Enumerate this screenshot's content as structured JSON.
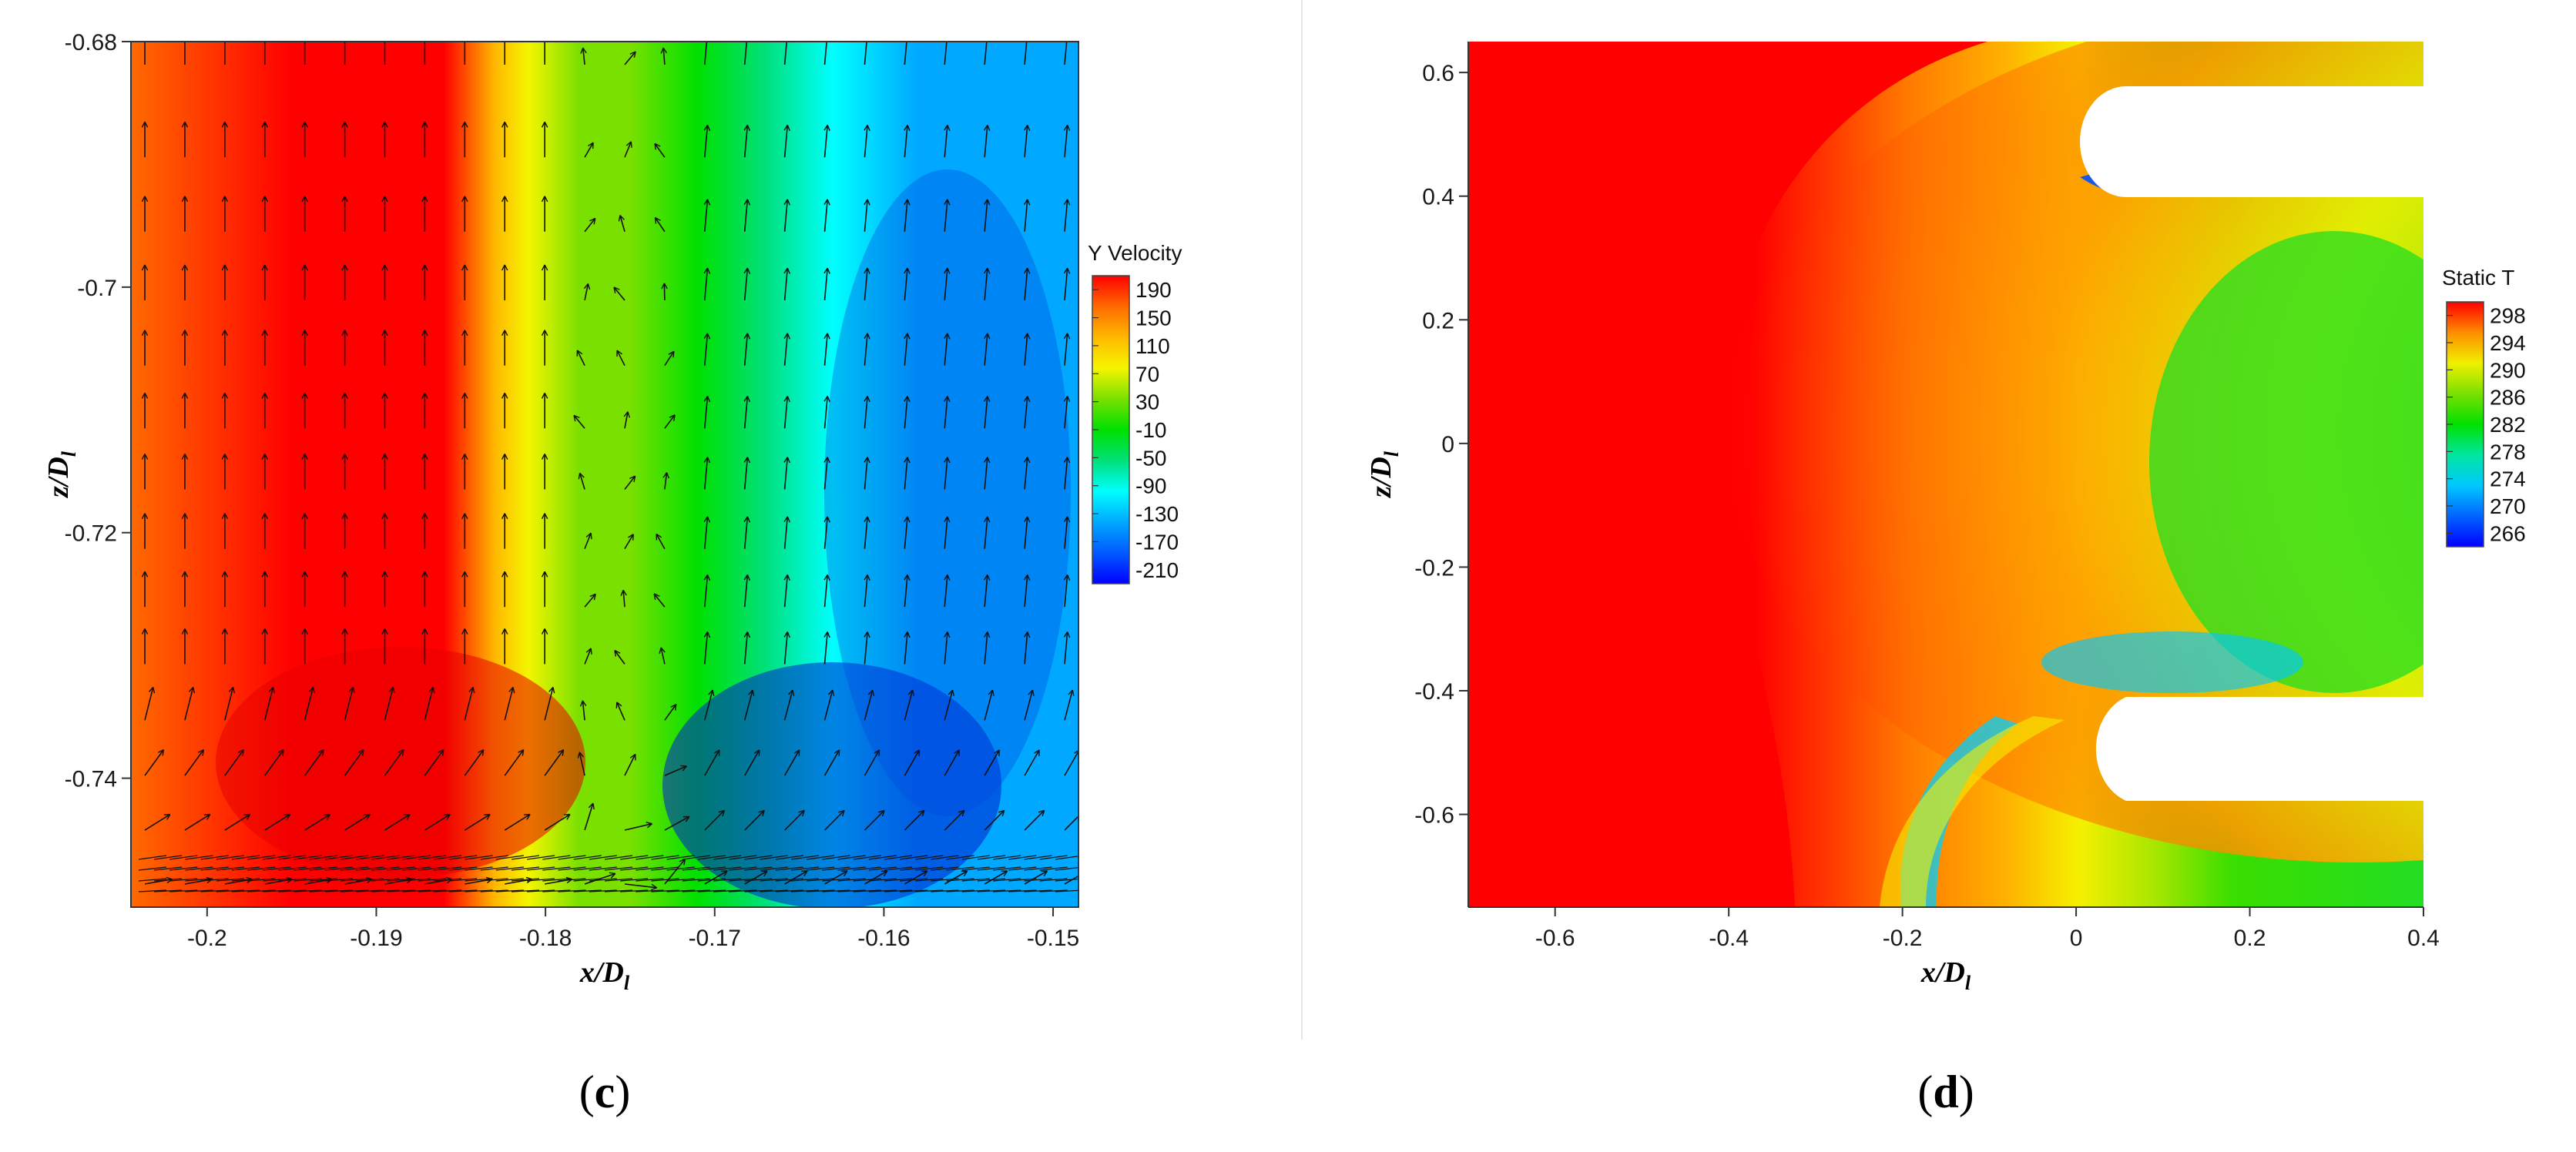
{
  "chart_data": [
    {
      "type": "heatmap",
      "panel_label": "c",
      "xlabel_base": "x/D",
      "xlabel_sub": "l",
      "ylabel_base": "z/D",
      "ylabel_sub": "l",
      "xlim": [
        -0.2045,
        -0.1485
      ],
      "ylim": [
        -0.7505,
        -0.68
      ],
      "xticks": [
        -0.2,
        -0.19,
        -0.18,
        -0.17,
        -0.16,
        -0.15
      ],
      "yticks": [
        -0.68,
        -0.7,
        -0.72,
        -0.74
      ],
      "xtick_labels": [
        "-0.2",
        "-0.19",
        "-0.18",
        "-0.17",
        "-0.16",
        "-0.15"
      ],
      "ytick_labels": [
        "-0.68",
        "-0.7",
        "-0.72",
        "-0.74"
      ],
      "colorbar": {
        "title": "Y Velocity",
        "levels": [
          190,
          150,
          110,
          70,
          30,
          -10,
          -50,
          -90,
          -130,
          -170,
          -210
        ],
        "labels": [
          "190",
          "150",
          "110",
          "70",
          "30",
          "-10",
          "-50",
          "-90",
          "-130",
          "-170",
          "-210"
        ],
        "colors": [
          "#ff0000",
          "#ff6a00",
          "#ffb800",
          "#f5f500",
          "#7ae000",
          "#00e000",
          "#00e07a",
          "#00ffff",
          "#00a8ff",
          "#005aff",
          "#0000ff"
        ]
      },
      "field_columns": [
        {
          "x": -0.2045,
          "v": 120
        },
        {
          "x": -0.195,
          "v": 165
        },
        {
          "x": -0.19,
          "v": 180
        },
        {
          "x": -0.186,
          "v": 160
        },
        {
          "x": -0.183,
          "v": 100
        },
        {
          "x": -0.181,
          "v": 60
        },
        {
          "x": -0.178,
          "v": 20
        },
        {
          "x": -0.175,
          "v": -10
        },
        {
          "x": -0.171,
          "v": -50
        },
        {
          "x": -0.167,
          "v": -90
        },
        {
          "x": -0.163,
          "v": -130
        },
        {
          "x": -0.158,
          "v": -155
        },
        {
          "x": -0.1485,
          "v": -140
        }
      ],
      "vectors": "velocity vector arrows overlaid on field"
    },
    {
      "type": "heatmap",
      "panel_label": "d",
      "xlabel_base": "x/D",
      "xlabel_sub": "l",
      "ylabel_base": "z/D",
      "ylabel_sub": "l",
      "xlim": [
        -0.7,
        0.4
      ],
      "ylim": [
        -0.75,
        0.65
      ],
      "xticks": [
        -0.6,
        -0.4,
        -0.2,
        0,
        0.2,
        0.4
      ],
      "yticks": [
        0.6,
        0.4,
        0.2,
        0,
        -0.2,
        -0.4,
        -0.6
      ],
      "xtick_labels": [
        "-0.6",
        "-0.4",
        "-0.2",
        "0",
        "0.2",
        "0.4"
      ],
      "ytick_labels": [
        "0.6",
        "0.4",
        "0.2",
        "0",
        "-0.2",
        "-0.4",
        "-0.6"
      ],
      "colorbar": {
        "title": "Static T",
        "levels": [
          298,
          294,
          290,
          286,
          282,
          278,
          274,
          270,
          266
        ],
        "labels": [
          "298",
          "294",
          "290",
          "286",
          "282",
          "278",
          "274",
          "270",
          "266"
        ],
        "colors": [
          "#ff0000",
          "#ff8c00",
          "#f0f000",
          "#7ae000",
          "#00e000",
          "#00e6a0",
          "#00c8ff",
          "#0064ff",
          "#0000ff"
        ]
      }
    }
  ]
}
